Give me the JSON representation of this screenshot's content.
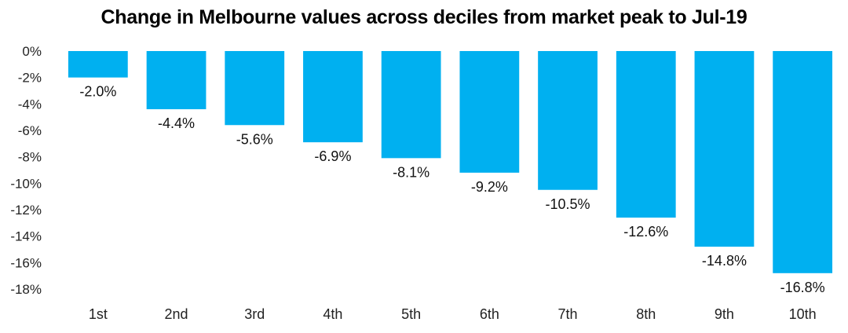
{
  "chart_data": {
    "type": "bar",
    "title": "Change in Melbourne values across deciles from market peak to Jul-19",
    "xlabel": "",
    "ylabel": "",
    "categories": [
      "1st",
      "2nd",
      "3rd",
      "4th",
      "5th",
      "6th",
      "7th",
      "8th",
      "9th",
      "10th"
    ],
    "values": [
      -2.0,
      -4.4,
      -5.6,
      -6.9,
      -8.1,
      -9.2,
      -10.5,
      -12.6,
      -14.8,
      -16.8
    ],
    "data_labels": [
      "-2.0%",
      "-4.4%",
      "-5.6%",
      "-6.9%",
      "-8.1%",
      "-9.2%",
      "-10.5%",
      "-12.6%",
      "-14.8%",
      "-16.8%"
    ],
    "ylim": [
      -18,
      0
    ],
    "y_ticks": [
      0,
      -2,
      -4,
      -6,
      -8,
      -10,
      -12,
      -14,
      -16,
      -18
    ],
    "y_tick_labels": [
      "0%",
      "-2%",
      "-4%",
      "-6%",
      "-8%",
      "-10%",
      "-12%",
      "-14%",
      "-16%",
      "-18%"
    ],
    "grid": false,
    "legend": "none",
    "bar_color": "#00B0F0"
  }
}
